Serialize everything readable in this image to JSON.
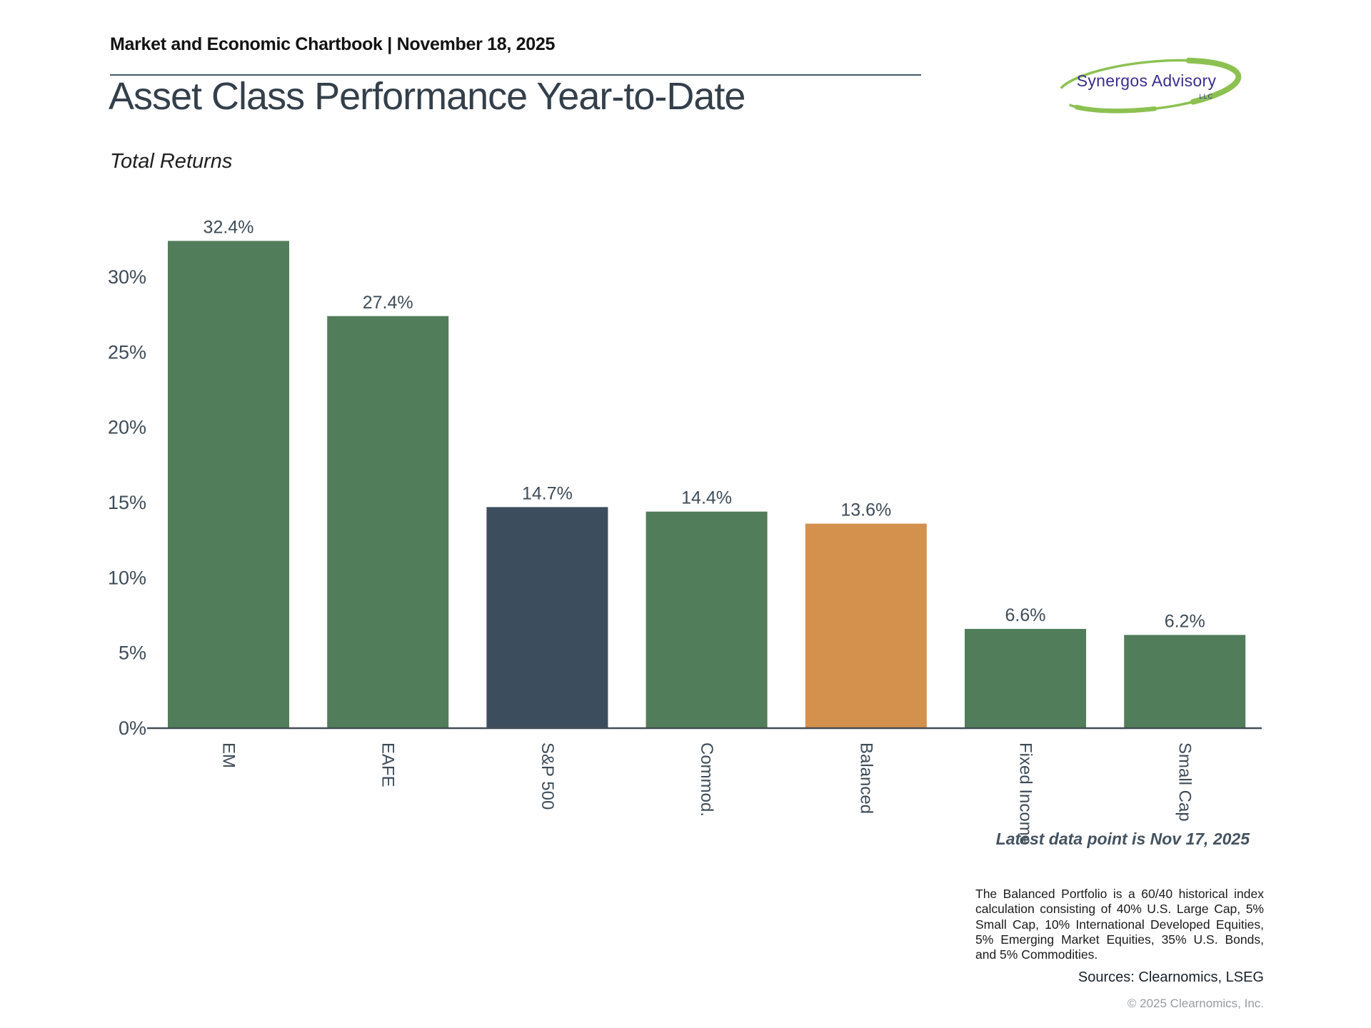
{
  "header": {
    "chartbook_label": "Market and Economic Chartbook | November 18, 2025",
    "logo_name": "Synergos Advisory",
    "logo_suffix": "LLC"
  },
  "title": "Asset Class Performance Year-to-Date",
  "subtitle": "Total Returns",
  "chart_data": {
    "type": "bar",
    "title": "Asset Class Performance Year-to-Date",
    "subtitle": "Total Returns",
    "categories": [
      "EM",
      "EAFE",
      "S&P 500",
      "Commod.",
      "Balanced",
      "Fixed Income",
      "Small Cap"
    ],
    "values": [
      32.4,
      27.4,
      14.7,
      14.4,
      13.6,
      6.6,
      6.2
    ],
    "value_labels": [
      "32.4%",
      "27.4%",
      "14.7%",
      "14.4%",
      "13.6%",
      "6.6%",
      "6.2%"
    ],
    "bar_colors": [
      "#527d5a",
      "#527d5a",
      "#3c4e5e",
      "#527d5a",
      "#d3914d",
      "#527d5a",
      "#527d5a"
    ],
    "xlabel": "",
    "ylabel": "",
    "ylim": [
      0,
      34
    ],
    "yticks": [
      0,
      5,
      10,
      15,
      20,
      25,
      30
    ],
    "ytick_labels": [
      "0%",
      "5%",
      "10%",
      "15%",
      "20%",
      "25%",
      "30%"
    ],
    "grid": false,
    "legend": null,
    "x_tick_rotation_deg": 90
  },
  "annotations": {
    "latest_data": "Latest data point is Nov 17, 2025"
  },
  "footnote": {
    "text": "The Balanced Portfolio is a 60/40 historical index calculation consisting of 40% U.S. Large Cap, 5% Small Cap, 10% International Developed Equities, 5% Emerging Market Equities, 35% U.S. Bonds, and 5% Commodities.",
    "sources": "Sources: Clearnomics, LSEG",
    "copyright": "© 2025 Clearnomics, Inc."
  },
  "colors": {
    "green_bar": "#527d5a",
    "navy_bar": "#3c4e5e",
    "orange_bar": "#d3914d",
    "axis_line": "#454d55",
    "tick_text": "#3e4c59",
    "title_text": "#333f4a",
    "divider": "#44596b",
    "logo_purple": "#3a2d90",
    "logo_green": "#8cc152"
  }
}
